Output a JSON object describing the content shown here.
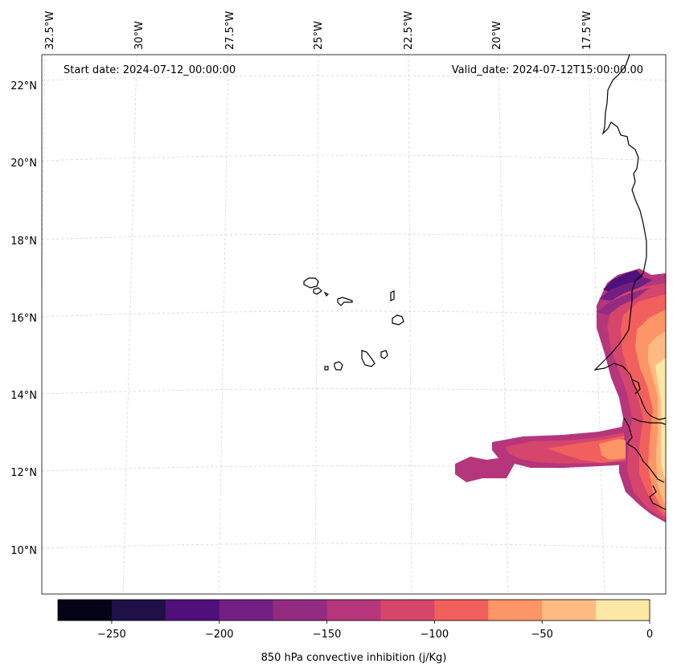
{
  "map": {
    "start_date": "Start date: 2024-07-12_00:00:00",
    "valid_date": "Valid_date: 2024-07-12T15:00:00.00",
    "lon_labels": [
      "32.5°W",
      "30°W",
      "27.5°W",
      "25°W",
      "22.5°W",
      "20°W",
      "17.5°W"
    ],
    "lat_labels": [
      "22°N",
      "20°N",
      "18°N",
      "16°N",
      "14°N",
      "12°N",
      "10°N"
    ]
  },
  "colorbar": {
    "title": "850 hPa convective inhibition (j/Kg)",
    "tick_labels": [
      "−250",
      "−200",
      "−150",
      "−100",
      "−50",
      "0"
    ],
    "bins": [
      -275,
      -250,
      -225,
      -200,
      -175,
      -150,
      -125,
      -100,
      -75,
      -50,
      -25,
      0
    ],
    "colors": [
      "#050417",
      "#1f1147",
      "#4f107b",
      "#721f81",
      "#932c80",
      "#b5367a",
      "#d6456c",
      "#f1605d",
      "#fd9567",
      "#febb81",
      "#fde7a5"
    ]
  },
  "colors": {
    "coastline": "#000000",
    "gridline": "#cccccc"
  }
}
